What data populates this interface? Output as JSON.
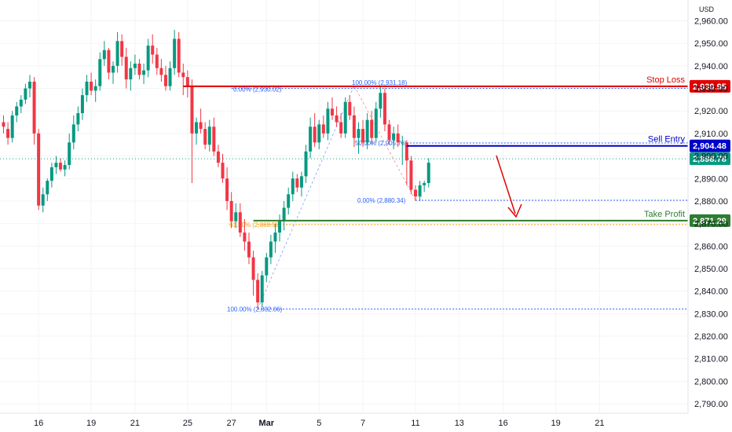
{
  "currency": "USD",
  "colors": {
    "up": "#089981",
    "down": "#f23645",
    "stop": "#e00000",
    "entry": "#0000c8",
    "profit": "#2e7d32",
    "current": "#089981",
    "fib": "#2962ff",
    "fib618": "#ff9800"
  },
  "chart_data": {
    "type": "candlestick",
    "title": "",
    "ylim": [
      2787,
      2965
    ],
    "y_ticks": [
      "2,960.00",
      "2,950.00",
      "2,940.00",
      "2,930.00",
      "2,920.00",
      "2,910.00",
      "2,900.00",
      "2,890.00",
      "2,880.00",
      "2,870.00",
      "2,860.00",
      "2,850.00",
      "2,840.00",
      "2,830.00",
      "2,820.00",
      "2,810.00",
      "2,800.00",
      "2,790.00"
    ],
    "y_tick_values": [
      2960,
      2950,
      2940,
      2930,
      2920,
      2910,
      2900,
      2890,
      2880,
      2870,
      2860,
      2850,
      2840,
      2830,
      2820,
      2810,
      2800,
      2790
    ],
    "x_ticks": [
      "16",
      "19",
      "21",
      "25",
      "27",
      "Mar",
      "5",
      "7",
      "11",
      "13",
      "16",
      "19",
      "21"
    ],
    "x_tick_bar_index": [
      8,
      20,
      30,
      42,
      52,
      60,
      72,
      82,
      94,
      104,
      114,
      126,
      136
    ],
    "candles": [
      [
        2915,
        2918,
        2910,
        2913
      ],
      [
        2912,
        2915,
        2905,
        2908
      ],
      [
        2908,
        2920,
        2906,
        2918
      ],
      [
        2918,
        2924,
        2915,
        2922
      ],
      [
        2922,
        2927,
        2919,
        2925
      ],
      [
        2925,
        2932,
        2923,
        2930
      ],
      [
        2930,
        2936,
        2926,
        2933
      ],
      [
        2933,
        2935,
        2905,
        2910
      ],
      [
        2910,
        2912,
        2876,
        2878
      ],
      [
        2878,
        2886,
        2875,
        2883
      ],
      [
        2883,
        2890,
        2880,
        2889
      ],
      [
        2889,
        2897,
        2886,
        2895
      ],
      [
        2895,
        2900,
        2892,
        2897
      ],
      [
        2897,
        2899,
        2893,
        2894
      ],
      [
        2894,
        2898,
        2891,
        2896
      ],
      [
        2896,
        2910,
        2894,
        2906
      ],
      [
        2906,
        2918,
        2903,
        2914
      ],
      [
        2914,
        2922,
        2911,
        2919
      ],
      [
        2919,
        2930,
        2916,
        2927
      ],
      [
        2927,
        2936,
        2924,
        2933
      ],
      [
        2933,
        2937,
        2927,
        2929
      ],
      [
        2929,
        2934,
        2924,
        2931
      ],
      [
        2931,
        2946,
        2929,
        2943
      ],
      [
        2943,
        2951,
        2940,
        2947
      ],
      [
        2947,
        2948,
        2934,
        2937
      ],
      [
        2937,
        2942,
        2932,
        2940
      ],
      [
        2940,
        2955,
        2937,
        2951
      ],
      [
        2951,
        2954,
        2940,
        2944
      ],
      [
        2944,
        2948,
        2930,
        2934
      ],
      [
        2934,
        2942,
        2929,
        2939
      ],
      [
        2939,
        2945,
        2936,
        2941
      ],
      [
        2941,
        2943,
        2934,
        2936
      ],
      [
        2936,
        2941,
        2932,
        2938
      ],
      [
        2938,
        2952,
        2935,
        2949
      ],
      [
        2949,
        2954,
        2941,
        2945
      ],
      [
        2945,
        2948,
        2936,
        2939
      ],
      [
        2939,
        2943,
        2933,
        2936
      ],
      [
        2936,
        2940,
        2929,
        2931
      ],
      [
        2931,
        2942,
        2929,
        2939
      ],
      [
        2939,
        2956,
        2936,
        2952
      ],
      [
        2952,
        2955,
        2935,
        2937
      ],
      [
        2937,
        2941,
        2927,
        2935
      ],
      [
        2935,
        2938,
        2926,
        2931
      ],
      [
        2931,
        2934,
        2888,
        2910
      ],
      [
        2910,
        2917,
        2905,
        2915
      ],
      [
        2915,
        2921,
        2910,
        2912
      ],
      [
        2912,
        2915,
        2903,
        2905
      ],
      [
        2905,
        2916,
        2902,
        2913
      ],
      [
        2913,
        2917,
        2900,
        2902
      ],
      [
        2902,
        2905,
        2895,
        2897
      ],
      [
        2897,
        2901,
        2888,
        2890
      ],
      [
        2890,
        2895,
        2876,
        2880
      ],
      [
        2880,
        2884,
        2868,
        2871
      ],
      [
        2871,
        2879,
        2868,
        2875
      ],
      [
        2875,
        2879,
        2864,
        2866
      ],
      [
        2866,
        2872,
        2858,
        2862
      ],
      [
        2862,
        2866,
        2852,
        2855
      ],
      [
        2855,
        2858,
        2838,
        2845
      ],
      [
        2845,
        2848,
        2832,
        2835
      ],
      [
        2835,
        2849,
        2833,
        2847
      ],
      [
        2847,
        2857,
        2844,
        2855
      ],
      [
        2855,
        2865,
        2852,
        2862
      ],
      [
        2862,
        2870,
        2857,
        2866
      ],
      [
        2866,
        2874,
        2862,
        2871
      ],
      [
        2871,
        2880,
        2867,
        2877
      ],
      [
        2877,
        2886,
        2874,
        2883
      ],
      [
        2883,
        2893,
        2880,
        2890
      ],
      [
        2890,
        2892,
        2884,
        2886
      ],
      [
        2886,
        2893,
        2882,
        2891
      ],
      [
        2891,
        2905,
        2888,
        2902
      ],
      [
        2902,
        2917,
        2899,
        2913
      ],
      [
        2913,
        2919,
        2904,
        2906
      ],
      [
        2906,
        2916,
        2903,
        2914
      ],
      [
        2914,
        2918,
        2908,
        2910
      ],
      [
        2910,
        2924,
        2907,
        2921
      ],
      [
        2921,
        2926,
        2916,
        2918
      ],
      [
        2918,
        2922,
        2913,
        2915
      ],
      [
        2915,
        2919,
        2908,
        2910
      ],
      [
        2910,
        2926,
        2908,
        2924
      ],
      [
        2924,
        2927,
        2916,
        2918
      ],
      [
        2918,
        2922,
        2904,
        2908
      ],
      [
        2908,
        2915,
        2901,
        2912
      ],
      [
        2912,
        2916,
        2904,
        2906
      ],
      [
        2906,
        2919,
        2903,
        2916
      ],
      [
        2916,
        2920,
        2905,
        2908
      ],
      [
        2908,
        2924,
        2906,
        2921
      ],
      [
        2921,
        2931,
        2917,
        2928
      ],
      [
        2928,
        2930,
        2911,
        2914
      ],
      [
        2914,
        2916,
        2905,
        2907
      ],
      [
        2907,
        2913,
        2903,
        2910
      ],
      [
        2910,
        2914,
        2904,
        2906
      ],
      [
        2906,
        2909,
        2896,
        2906
      ],
      [
        2906,
        2907,
        2887,
        2898
      ],
      [
        2898,
        2900,
        2883,
        2885
      ],
      [
        2885,
        2887,
        2880,
        2882
      ],
      [
        2882,
        2889,
        2880,
        2887
      ],
      [
        2887,
        2889,
        2884,
        2888
      ],
      [
        2888,
        2899,
        2886,
        2897
      ]
    ],
    "horizontal_levels": [
      {
        "name": "Stop Loss",
        "value": 2930.95,
        "label": "2,930.95"
      },
      {
        "name": "Sell Entry",
        "value": 2904.48,
        "label": "2,904.48"
      },
      {
        "name": "Take Profit",
        "value": 2871.29,
        "label": "2,871.29"
      }
    ],
    "current_price": {
      "value": 2898.78,
      "label": "2,898.78"
    },
    "fib_labels": [
      {
        "text": "0.00% (2,930.02)",
        "value": 2930.02
      },
      {
        "text": "100.00% (2,931.18)",
        "value": 2931.18
      },
      {
        "text": "50.00% (2,905.76)",
        "value": 2905.76
      },
      {
        "text": "0.00% (2,880.34)",
        "value": 2880.34
      },
      {
        "text": "61.80% (2,869.58)",
        "value": 2869.58
      },
      {
        "text": "100.00% (2,832.06)",
        "value": 2832.06
      }
    ],
    "annotations": [
      "Stop Loss",
      "Sell Entry",
      "Take Profit"
    ]
  }
}
